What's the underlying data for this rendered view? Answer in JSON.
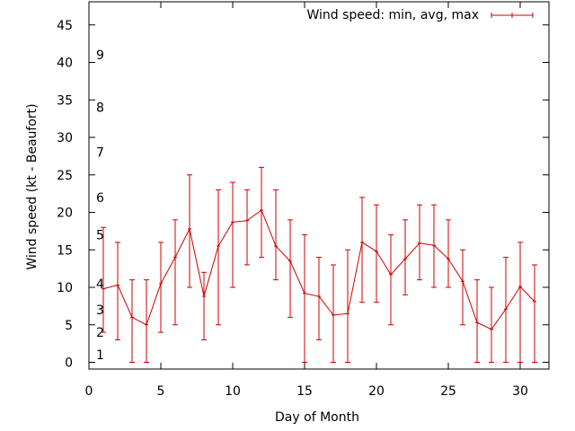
{
  "chart_data": {
    "type": "line",
    "xlabel": "Day of Month",
    "ylabel": "Wind speed (kt - Beaufort)",
    "xlim": [
      0,
      32
    ],
    "ylim": [
      0,
      48
    ],
    "xticks": [
      0,
      5,
      10,
      15,
      20,
      25,
      30
    ],
    "yticks": [
      0,
      5,
      10,
      15,
      20,
      25,
      30,
      35,
      40,
      45
    ],
    "beaufort_labels": [
      {
        "label": "1",
        "y": 1.0
      },
      {
        "label": "2",
        "y": 4.0
      },
      {
        "label": "3",
        "y": 7.0
      },
      {
        "label": "4",
        "y": 10.5
      },
      {
        "label": "5",
        "y": 17.0
      },
      {
        "label": "6",
        "y": 22.0
      },
      {
        "label": "7",
        "y": 28.0
      },
      {
        "label": "8",
        "y": 34.0
      },
      {
        "label": "9",
        "y": 41.0
      }
    ],
    "legend": {
      "position": "top-right"
    },
    "series": [
      {
        "name": "Wind speed: min, avg, max",
        "color": "#cc0000",
        "x": [
          1,
          2,
          3,
          4,
          5,
          6,
          7,
          8,
          9,
          10,
          11,
          12,
          13,
          14,
          15,
          16,
          17,
          18,
          19,
          20,
          21,
          22,
          23,
          24,
          25,
          26,
          27,
          28,
          29,
          30,
          31
        ],
        "avg": [
          9.8,
          10.3,
          6.0,
          5.0,
          10.5,
          14.0,
          17.8,
          8.8,
          15.5,
          18.7,
          18.9,
          20.3,
          15.5,
          13.5,
          9.2,
          8.8,
          6.3,
          6.5,
          16.0,
          14.8,
          11.7,
          13.8,
          15.9,
          15.6,
          13.8,
          10.8,
          5.3,
          4.4,
          7.1,
          10.1,
          8.1
        ],
        "min": [
          4,
          3,
          0,
          0,
          4,
          5,
          10,
          3,
          5,
          10,
          13,
          14,
          11,
          6,
          0,
          3,
          0,
          0,
          8,
          8,
          5,
          9,
          11,
          10,
          10,
          5,
          0,
          0,
          0,
          0,
          0
        ],
        "max": [
          18,
          16,
          11,
          11,
          16,
          19,
          25,
          12,
          23,
          24,
          23,
          26,
          23,
          19,
          17,
          14,
          13,
          15,
          22,
          21,
          17,
          19,
          21,
          21,
          19,
          15,
          11,
          10,
          14,
          16,
          13
        ]
      }
    ]
  }
}
